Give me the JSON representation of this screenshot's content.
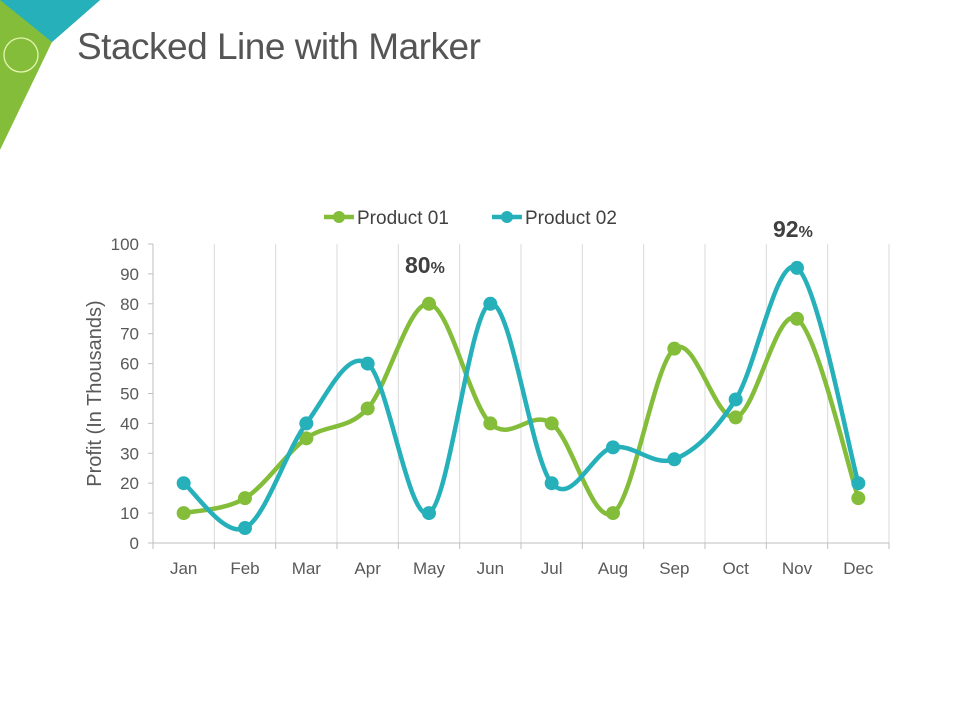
{
  "slide": {
    "title": "Stacked Line with Marker"
  },
  "colors": {
    "product01": "#84bd3a",
    "product02": "#26b0ba",
    "accent_green": "#84bd3a",
    "accent_teal": "#26b0ba"
  },
  "chart_data": {
    "type": "line",
    "smooth": true,
    "markers": true,
    "categories": [
      "Jan",
      "Feb",
      "Mar",
      "Apr",
      "May",
      "Jun",
      "Jul",
      "Aug",
      "Sep",
      "Oct",
      "Nov",
      "Dec"
    ],
    "series": [
      {
        "name": "Product 01",
        "color": "#84bd3a",
        "values": [
          10,
          15,
          35,
          45,
          80,
          40,
          40,
          10,
          65,
          42,
          75,
          15
        ]
      },
      {
        "name": "Product 02",
        "color": "#26b0ba",
        "values": [
          20,
          5,
          40,
          60,
          10,
          80,
          20,
          32,
          28,
          48,
          92,
          20
        ]
      }
    ],
    "ylabel": "Profit (In Thousands)",
    "xlabel": "",
    "ylim": [
      0,
      100
    ],
    "yticks": [
      0,
      10,
      20,
      30,
      40,
      50,
      60,
      70,
      80,
      90,
      100
    ],
    "grid": "vertical",
    "legend": "top",
    "annotations": [
      {
        "category": "May",
        "value": 80,
        "text": "80",
        "unit": "%"
      },
      {
        "category": "Nov",
        "value": 92,
        "text": "92",
        "unit": "%"
      }
    ]
  }
}
